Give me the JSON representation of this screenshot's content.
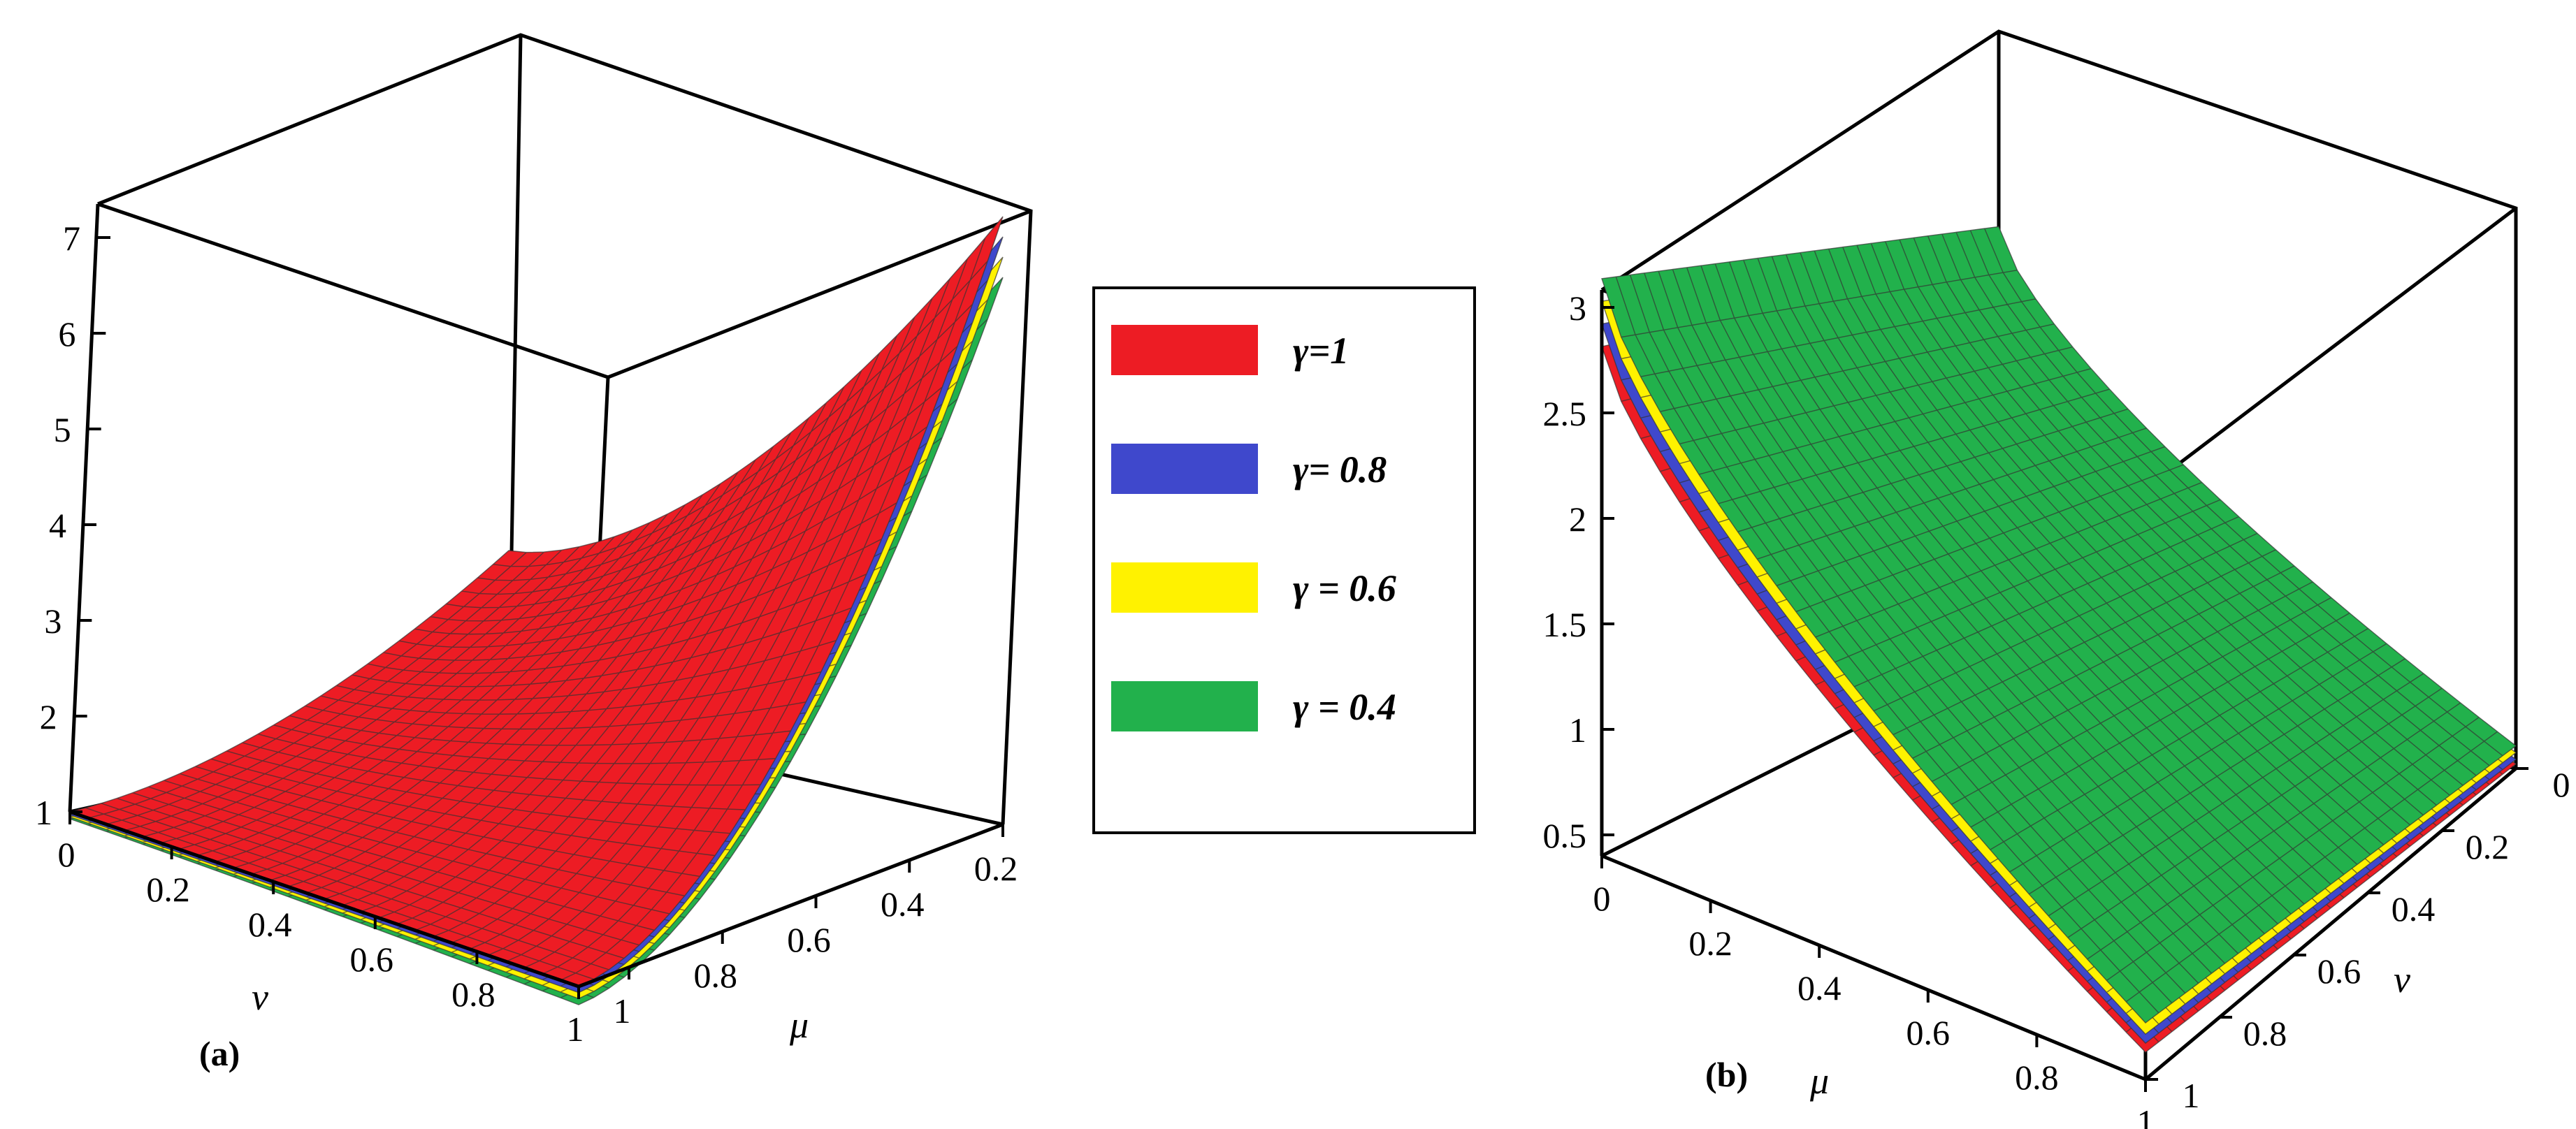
{
  "legend": {
    "entries": [
      {
        "label": "γ=1",
        "color": "#ed1c24"
      },
      {
        "label": "γ= 0.8",
        "color": "#3f48cc"
      },
      {
        "label": "γ = 0.6",
        "color": "#fff200"
      },
      {
        "label": "γ = 0.4",
        "color": "#22b14c"
      }
    ]
  },
  "chart_data": [
    {
      "type": "surface3d",
      "panel_label": "(a)",
      "xlabel": "ν",
      "ylabel": "μ",
      "zlabel": "",
      "x_ticks": [
        "0",
        "0.2",
        "0.4",
        "0.6",
        "0.8",
        "1"
      ],
      "y_ticks": [
        "0.2",
        "0.4",
        "0.6",
        "0.8",
        "1"
      ],
      "z_ticks": [
        "1",
        "2",
        "3",
        "4",
        "5",
        "6",
        "7"
      ],
      "xlim": [
        0,
        1
      ],
      "ylim": [
        0,
        1
      ],
      "zlim": [
        1,
        7
      ],
      "series": [
        {
          "name": "γ=1",
          "color": "#ed1c24",
          "corner_values": {
            "v0_mu0": 1.0,
            "v1_mu0": 1.0,
            "v0_mu1": 2.6,
            "v1_mu1": 7.0
          }
        },
        {
          "name": "γ= 0.8",
          "color": "#3f48cc",
          "corner_values": {
            "v0_mu0": 0.97,
            "v1_mu0": 0.94,
            "v0_mu1": 2.5,
            "v1_mu1": 6.8
          }
        },
        {
          "name": "γ = 0.6",
          "color": "#fff200",
          "corner_values": {
            "v0_mu0": 0.95,
            "v1_mu0": 0.88,
            "v0_mu1": 2.45,
            "v1_mu1": 6.6
          }
        },
        {
          "name": "γ = 0.4",
          "color": "#22b14c",
          "corner_values": {
            "v0_mu0": 0.93,
            "v1_mu0": 0.82,
            "v0_mu1": 2.4,
            "v1_mu1": 6.4
          }
        }
      ]
    },
    {
      "type": "surface3d",
      "panel_label": "(b)",
      "xlabel": "μ",
      "ylabel": "ν",
      "zlabel": "",
      "x_ticks": [
        "0",
        "0.2",
        "0.4",
        "0.6",
        "0.8",
        "1"
      ],
      "y_ticks": [
        "0",
        "0.2",
        "0.4",
        "0.6",
        "0.8",
        "1"
      ],
      "z_ticks": [
        "0.5",
        "1",
        "1.5",
        "2",
        "2.5",
        "3"
      ],
      "xlim": [
        0,
        1
      ],
      "ylim": [
        0,
        1
      ],
      "zlim": [
        0.5,
        3
      ],
      "series": [
        {
          "name": "γ = 0.4",
          "color": "#22b14c",
          "corner_values": {
            "mu0_v0": 3.05,
            "mu1_v0": 0.75,
            "mu0_v1": 2.4,
            "mu1_v1": 0.6
          }
        },
        {
          "name": "γ = 0.6",
          "color": "#fff200",
          "corner_values": {
            "mu0_v0": 2.95,
            "mu1_v0": 0.7,
            "mu0_v1": 2.35,
            "mu1_v1": 0.57
          }
        },
        {
          "name": "γ= 0.8",
          "color": "#3f48cc",
          "corner_values": {
            "mu0_v0": 2.85,
            "mu1_v0": 0.66,
            "mu0_v1": 2.3,
            "mu1_v1": 0.54
          }
        },
        {
          "name": "γ=1",
          "color": "#ed1c24",
          "corner_values": {
            "mu0_v0": 2.75,
            "mu1_v0": 0.62,
            "mu0_v1": 2.25,
            "mu1_v1": 0.52
          }
        }
      ]
    }
  ]
}
